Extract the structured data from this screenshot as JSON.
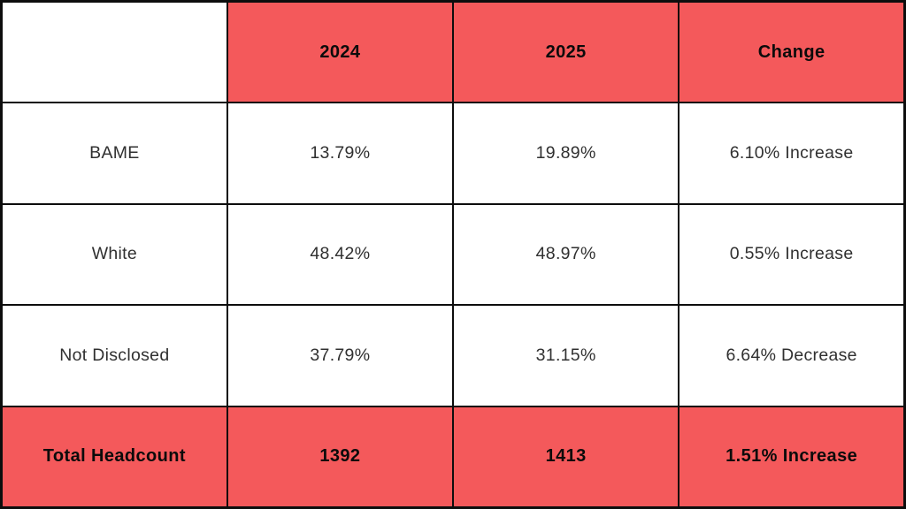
{
  "colors": {
    "accent_red": "#f4595b",
    "border_black": "#0d0d0d",
    "body_text": "#303030",
    "header_text": "#0b0b0b",
    "cell_white": "#ffffff"
  },
  "chart_data": {
    "type": "table",
    "title": "",
    "columns": [
      "",
      "2024",
      "2025",
      "Change"
    ],
    "rows": [
      [
        "BAME",
        "13.79%",
        "19.89%",
        "6.10% Increase"
      ],
      [
        "White",
        "48.42%",
        "48.97%",
        "0.55% Increase"
      ],
      [
        "Not Disclosed",
        "37.79%",
        "31.15%",
        "6.64% Decrease"
      ],
      [
        "Total Headcount",
        "1392",
        "1413",
        "1.51% Increase"
      ]
    ],
    "numeric": {
      "categories": [
        "BAME",
        "White",
        "Not Disclosed"
      ],
      "series": [
        {
          "name": "2024",
          "values": [
            13.79,
            48.42,
            37.79
          ]
        },
        {
          "name": "2025",
          "values": [
            19.89,
            48.97,
            31.15
          ]
        }
      ],
      "change_pct_points": [
        6.1,
        0.55,
        -6.64
      ],
      "total_headcount": {
        "y2024": 1392,
        "y2025": 1413,
        "change": "1.51% Increase"
      }
    }
  },
  "table": {
    "header": {
      "col0": "",
      "col1": "2024",
      "col2": "2025",
      "col3": "Change"
    },
    "rows": [
      {
        "label": "BAME",
        "y2024": "13.79%",
        "y2025": "19.89%",
        "change": "6.10% Increase"
      },
      {
        "label": "White",
        "y2024": "48.42%",
        "y2025": "48.97%",
        "change": "0.55% Increase"
      },
      {
        "label": "Not Disclosed",
        "y2024": "37.79%",
        "y2025": "31.15%",
        "change": "6.64% Decrease"
      }
    ],
    "footer": {
      "label": "Total Headcount",
      "y2024": "1392",
      "y2025": "1413",
      "change": "1.51% Increase"
    }
  }
}
